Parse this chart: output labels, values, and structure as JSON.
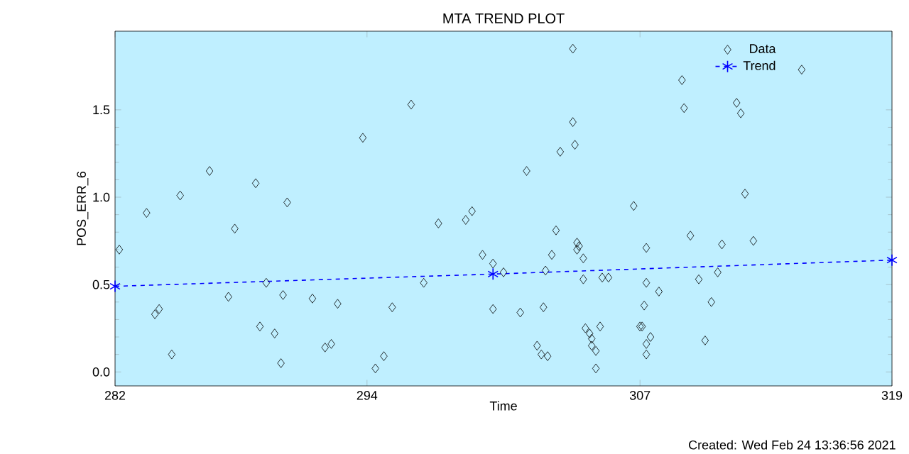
{
  "chart_data": {
    "type": "scatter",
    "title": "MTA TREND PLOT",
    "xlabel": "Time",
    "ylabel": "POS_ERR_6",
    "annotations": [
      "Created: Wed Feb 24 13:36:56 2021"
    ],
    "xlim": [
      282,
      319
    ],
    "ylim": [
      -0.08,
      1.95
    ],
    "xticks": [
      282,
      294,
      307,
      319
    ],
    "yticks": [
      {
        "value": 0,
        "label": "0.0"
      },
      {
        "value": 0.5,
        "label": "0.5"
      },
      {
        "value": 1,
        "label": "1.0"
      },
      {
        "value": 1.5,
        "label": "1.5"
      }
    ],
    "legend": "top right",
    "grid": false,
    "series": [
      {
        "name": "Data",
        "marker": "diamond",
        "color": "#000000",
        "x": [
          282.2,
          283.5,
          283.9,
          284.1,
          284.7,
          285.1,
          286.5,
          287.7,
          287.4,
          288.7,
          288.9,
          289.2,
          289.6,
          289.9,
          290.0,
          290.2,
          291.4,
          292.0,
          292.3,
          292.6,
          293.8,
          296.1,
          294.4,
          294.8,
          295.2,
          296.7,
          297.4,
          298.7,
          299.0,
          299.5,
          300.0,
          300.0,
          300.5,
          301.3,
          301.6,
          302.1,
          302.3,
          302.6,
          302.4,
          302.5,
          302.8,
          303.0,
          303.2,
          303.8,
          303.8,
          303.9,
          304.0,
          304.1,
          304.0,
          304.3,
          304.3,
          304.4,
          304.6,
          304.7,
          304.7,
          304.9,
          305.1,
          304.9,
          305.2,
          305.5,
          306.7,
          307.0,
          307.3,
          307.3,
          307.9,
          307.2,
          307.1,
          307.5,
          307.3,
          307.3,
          309.0,
          309.1,
          309.4,
          309.8,
          310.1,
          310.4,
          310.7,
          310.9,
          311.6,
          311.8,
          312.0,
          312.4,
          314.7
        ],
        "values": [
          0.7,
          0.91,
          0.33,
          0.36,
          0.1,
          1.01,
          1.15,
          0.82,
          0.43,
          1.08,
          0.26,
          0.51,
          0.22,
          0.05,
          0.44,
          0.97,
          0.42,
          0.14,
          0.16,
          0.39,
          1.34,
          1.53,
          0.02,
          0.09,
          0.37,
          0.51,
          0.85,
          0.87,
          0.92,
          0.67,
          0.36,
          0.62,
          0.57,
          0.34,
          1.15,
          0.15,
          0.1,
          0.09,
          0.37,
          0.58,
          0.67,
          0.81,
          1.26,
          1.85,
          1.43,
          1.3,
          0.74,
          0.72,
          0.7,
          0.65,
          0.53,
          0.25,
          0.22,
          0.19,
          0.15,
          0.12,
          0.26,
          0.02,
          0.54,
          0.54,
          0.95,
          0.26,
          0.71,
          0.51,
          0.46,
          0.38,
          0.26,
          0.2,
          0.16,
          0.1,
          1.67,
          1.51,
          0.78,
          0.53,
          0.18,
          0.4,
          0.57,
          0.73,
          1.54,
          1.48,
          1.02,
          0.75,
          1.73
        ]
      },
      {
        "name": "Trend",
        "type": "line",
        "marker": "cross",
        "line_style": "dashed",
        "color": "#0000ff",
        "x": [
          282,
          300,
          319
        ],
        "values": [
          0.49,
          0.56,
          0.64
        ]
      }
    ]
  }
}
